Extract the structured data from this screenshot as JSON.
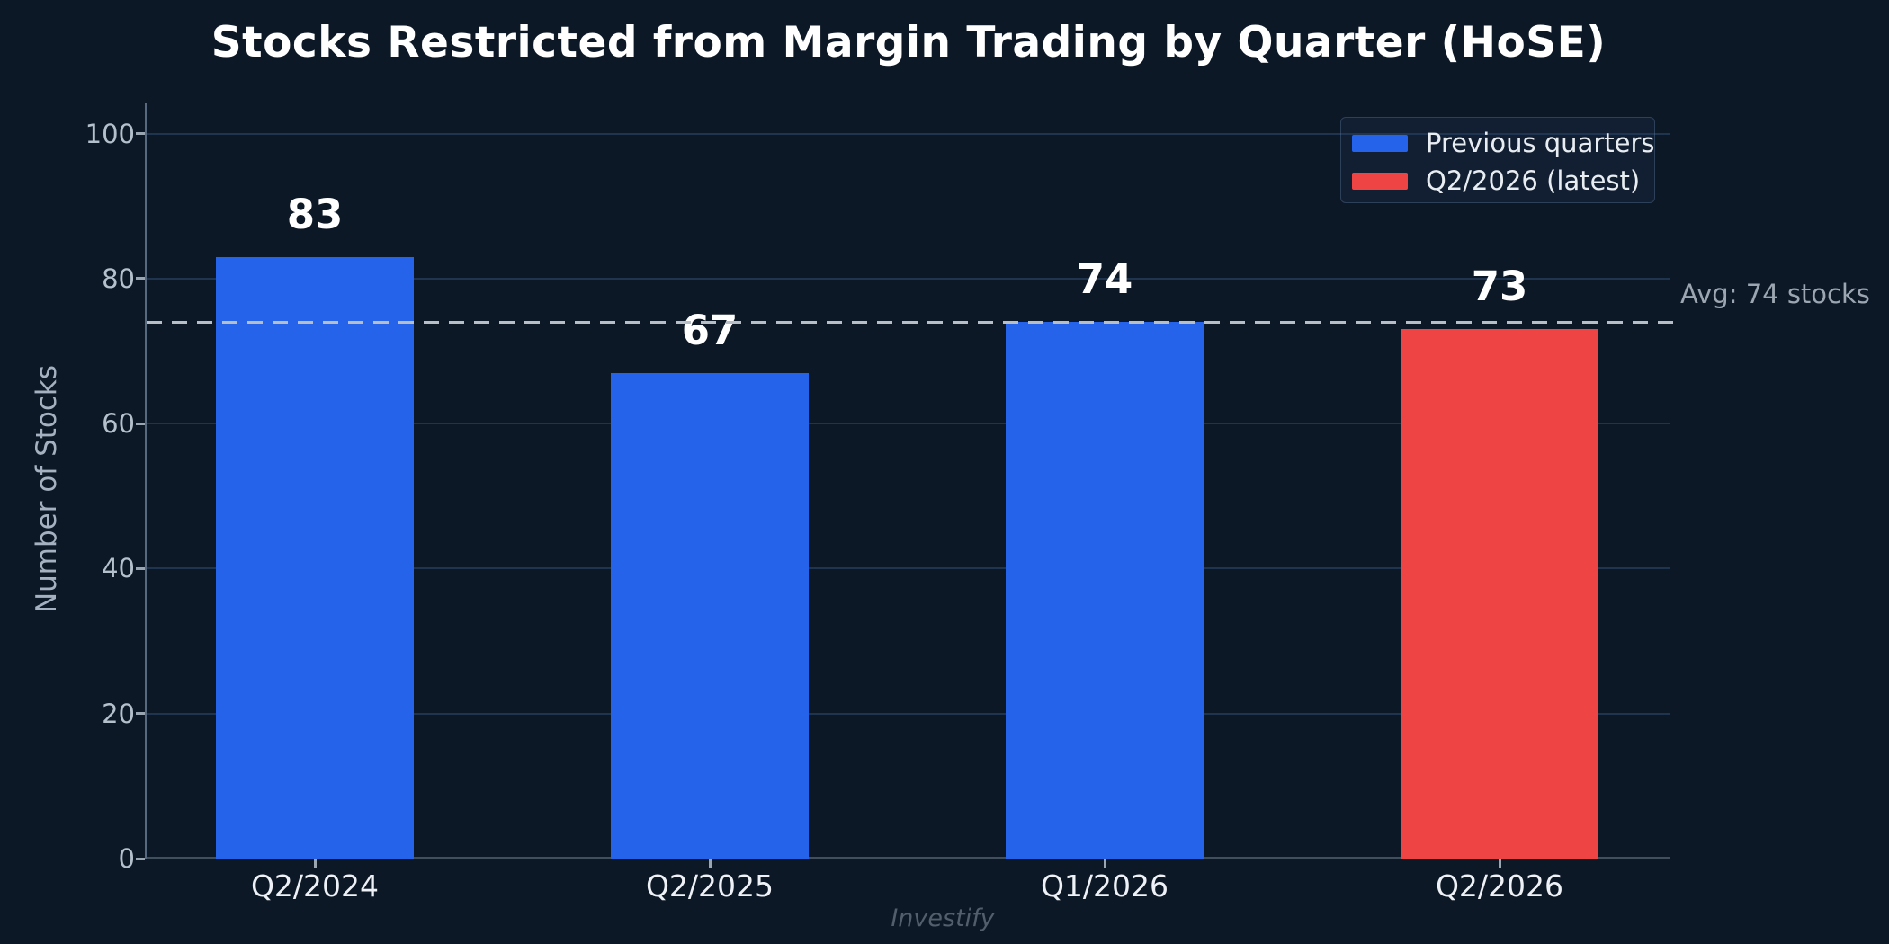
{
  "watermark": "Investify",
  "colors": {
    "background": "#0D1826",
    "bar_blue": "#2563EB",
    "bar_red": "#EF4444",
    "grid": "#1F344E",
    "spine_left": "#56697F",
    "spine_bottom": "#414E5C",
    "tick_mark": "#9AA6B2",
    "ytick_text": "#B4C0CC",
    "xtick_text": "#EEF2F6",
    "value_text": "#FFFFFF",
    "avg_line": "#B7BEC6",
    "avg_text": "#9BA6B2",
    "axis_title": "#A5B1C0",
    "legend_bg": "rgba(35,60,95,0.22)",
    "legend_border": "rgba(120,150,190,0.28)",
    "legend_text": "#E8EDF2",
    "watermark": "#525E6B"
  },
  "chart_data": {
    "type": "bar",
    "title": "Stocks Restricted from Margin Trading by Quarter (HoSE)",
    "ylabel": "Number of Stocks",
    "xlabel": "",
    "categories": [
      "Q2/2024",
      "Q2/2025",
      "Q1/2026",
      "Q2/2026"
    ],
    "values": [
      83,
      67,
      74,
      73
    ],
    "highlight_index": 3,
    "ylim": [
      0,
      100
    ],
    "yticks": [
      0,
      20,
      40,
      60,
      80,
      100
    ],
    "grid": true,
    "legend_position": "upper-right",
    "legend": [
      {
        "label": "Previous quarters",
        "color": "#2563EB"
      },
      {
        "label": "Q2/2026 (latest)",
        "color": "#EF4444"
      }
    ],
    "avg_line": {
      "value": 74,
      "label": "Avg: 74 stocks",
      "style": "dashed"
    }
  }
}
